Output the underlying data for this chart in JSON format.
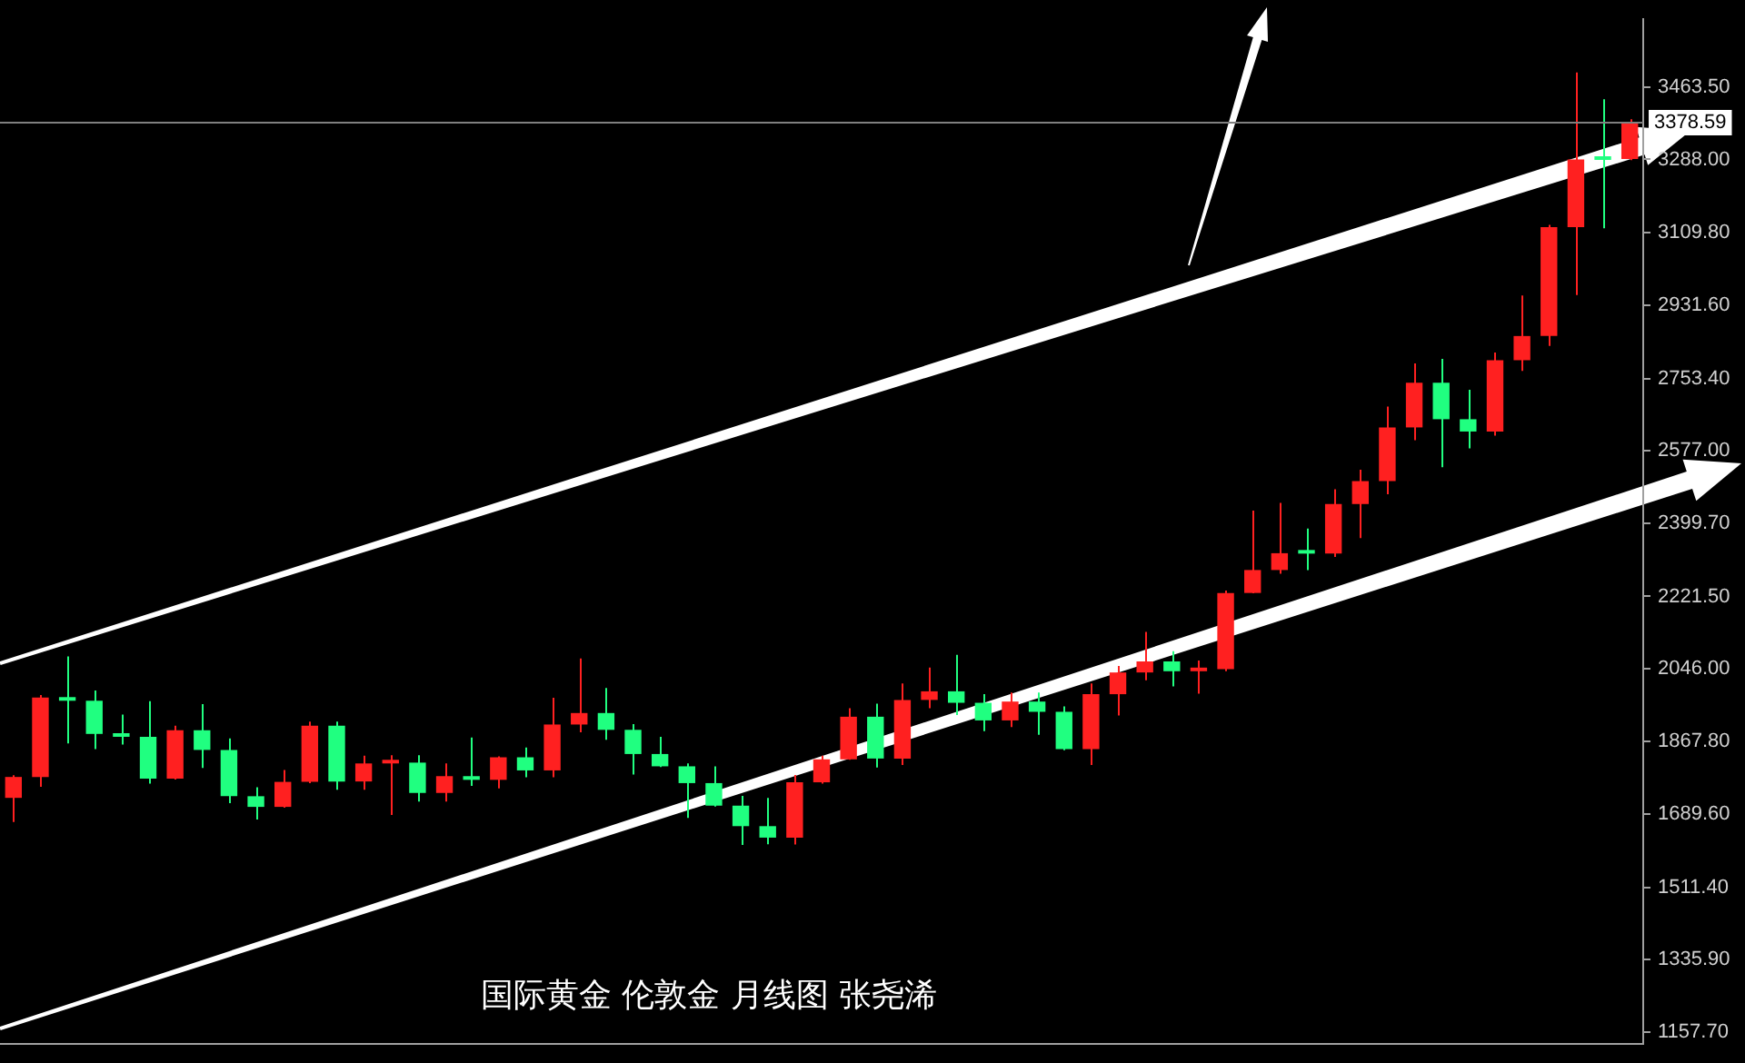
{
  "chart_data": {
    "type": "candlestick",
    "categories": [
      null,
      null,
      null,
      null,
      null,
      null,
      null,
      null,
      null,
      null,
      null,
      null,
      null,
      null,
      null,
      null,
      null,
      null,
      null,
      null,
      null,
      null,
      null,
      null,
      null,
      null,
      null,
      null,
      null,
      null,
      null,
      null,
      null,
      null,
      null,
      null,
      null,
      null,
      null,
      null,
      null,
      null,
      null,
      null,
      null,
      null,
      null,
      null,
      null,
      null,
      null,
      null,
      null,
      null,
      null,
      null,
      null,
      null,
      null,
      null,
      null
    ],
    "ohlc": [
      [
        1730,
        1785,
        1671,
        1781
      ],
      [
        1781,
        1981,
        1757,
        1975
      ],
      [
        1975,
        2075,
        1863,
        1967
      ],
      [
        1967,
        1992,
        1849,
        1886
      ],
      [
        1886,
        1933,
        1860,
        1879
      ],
      [
        1879,
        1966,
        1765,
        1777
      ],
      [
        1777,
        1906,
        1775,
        1895
      ],
      [
        1895,
        1959,
        1803,
        1847
      ],
      [
        1847,
        1875,
        1717,
        1734
      ],
      [
        1734,
        1756,
        1677,
        1708
      ],
      [
        1708,
        1798,
        1706,
        1769
      ],
      [
        1769,
        1916,
        1766,
        1906
      ],
      [
        1906,
        1916,
        1750,
        1770
      ],
      [
        1770,
        1833,
        1750,
        1814
      ],
      [
        1814,
        1834,
        1688,
        1816
      ],
      [
        1816,
        1834,
        1721,
        1742
      ],
      [
        1742,
        1814,
        1721,
        1783
      ],
      [
        1783,
        1877,
        1759,
        1774
      ],
      [
        1774,
        1831,
        1753,
        1829
      ],
      [
        1829,
        1853,
        1780,
        1797
      ],
      [
        1797,
        1974,
        1780,
        1909
      ],
      [
        1909,
        2070,
        1890,
        1937
      ],
      [
        1937,
        1998,
        1872,
        1896
      ],
      [
        1896,
        1910,
        1787,
        1837
      ],
      [
        1837,
        1879,
        1805,
        1807
      ],
      [
        1807,
        1814,
        1681,
        1766
      ],
      [
        1766,
        1807,
        1709,
        1711
      ],
      [
        1711,
        1735,
        1615,
        1661
      ],
      [
        1661,
        1730,
        1617,
        1633
      ],
      [
        1633,
        1786,
        1616,
        1768
      ],
      [
        1768,
        1833,
        1765,
        1824
      ],
      [
        1824,
        1949,
        1823,
        1928
      ],
      [
        1928,
        1960,
        1804,
        1826
      ],
      [
        1826,
        2009,
        1810,
        1969
      ],
      [
        1969,
        2048,
        1949,
        1990
      ],
      [
        1990,
        2079,
        1932,
        1962
      ],
      [
        1962,
        1983,
        1893,
        1919
      ],
      [
        1919,
        1987,
        1903,
        1965
      ],
      [
        1965,
        1987,
        1884,
        1940
      ],
      [
        1940,
        1953,
        1846,
        1849
      ],
      [
        1849,
        2009,
        1810,
        1983
      ],
      [
        1983,
        2052,
        1931,
        2036
      ],
      [
        2036,
        2135,
        2017,
        2063
      ],
      [
        2063,
        2088,
        2002,
        2039
      ],
      [
        2039,
        2065,
        1984,
        2044
      ],
      [
        2044,
        2236,
        2039,
        2230
      ],
      [
        2230,
        2431,
        2229,
        2286
      ],
      [
        2286,
        2450,
        2277,
        2327
      ],
      [
        2327,
        2387,
        2286,
        2326
      ],
      [
        2326,
        2483,
        2318,
        2447
      ],
      [
        2447,
        2531,
        2364,
        2503
      ],
      [
        2503,
        2685,
        2471,
        2634
      ],
      [
        2634,
        2790,
        2603,
        2743
      ],
      [
        2743,
        2801,
        2537,
        2654
      ],
      [
        2654,
        2726,
        2583,
        2624
      ],
      [
        2624,
        2817,
        2614,
        2798
      ],
      [
        2798,
        2956,
        2772,
        2857
      ],
      [
        2857,
        3128,
        2833,
        3123
      ],
      [
        3123,
        3500,
        2957,
        3288
      ],
      [
        3288,
        3435,
        3120,
        3287
      ],
      [
        3289,
        3386,
        3286,
        3378.59
      ]
    ],
    "colors": [
      "#ff2020",
      "#ff2020",
      "#20ff80",
      "#20ff80",
      "#20ff80",
      "#20ff80",
      "#ff2020",
      "#20ff80",
      "#20ff80",
      "#20ff80",
      "#ff2020",
      "#ff2020",
      "#20ff80",
      "#ff2020",
      "#ff2020",
      "#20ff80",
      "#ff2020",
      "#20ff80",
      "#ff2020",
      "#20ff80",
      "#ff2020",
      "#ff2020",
      "#20ff80",
      "#20ff80",
      "#20ff80",
      "#20ff80",
      "#20ff80",
      "#20ff80",
      "#20ff80",
      "#ff2020",
      "#ff2020",
      "#ff2020",
      "#20ff80",
      "#ff2020",
      "#ff2020",
      "#20ff80",
      "#20ff80",
      "#ff2020",
      "#20ff80",
      "#20ff80",
      "#ff2020",
      "#ff2020",
      "#ff2020",
      "#20ff80",
      "#ff2020",
      "#ff2020",
      "#ff2020",
      "#ff2020",
      "#20ff80",
      "#ff2020",
      "#ff2020",
      "#ff2020",
      "#ff2020",
      "#20ff80",
      "#20ff80",
      "#ff2020",
      "#ff2020",
      "#ff2020",
      "#ff2020",
      "#20ff80",
      "#ff2020"
    ],
    "ylim": [
      1130,
      3630
    ],
    "yticks": [
      {
        "value": 1157.7,
        "label": "1157.70"
      },
      {
        "value": 1335.9,
        "label": "1335.90"
      },
      {
        "value": 1511.4,
        "label": "1511.40"
      },
      {
        "value": 1689.6,
        "label": "1689.60"
      },
      {
        "value": 1867.8,
        "label": "1867.80"
      },
      {
        "value": 2046,
        "label": "2046.00"
      },
      {
        "value": 2221.5,
        "label": "2221.50"
      },
      {
        "value": 2399.7,
        "label": "2399.70"
      },
      {
        "value": 2577,
        "label": "2577.00"
      },
      {
        "value": 2753.4,
        "label": "2753.40"
      },
      {
        "value": 2931.6,
        "label": "2931.60"
      },
      {
        "value": 3109.8,
        "label": "3109.80"
      },
      {
        "value": 3288,
        "label": "3288.00"
      },
      {
        "value": 3463.5,
        "label": "3463.50"
      }
    ],
    "ref_lines": [
      {
        "axis": "y",
        "value": 3378.59,
        "label": "3378.59",
        "color": "#808080"
      }
    ],
    "annotations": [
      "国际黄金 伦敦金 月线图 张尧浠"
    ],
    "grid": false,
    "legend": false
  }
}
